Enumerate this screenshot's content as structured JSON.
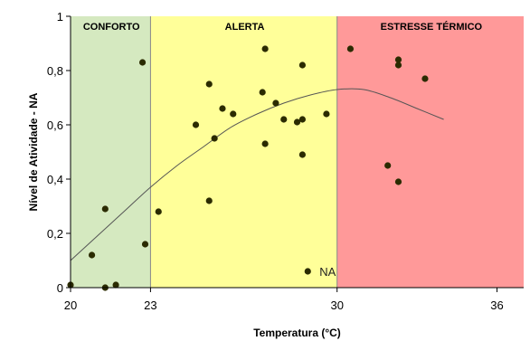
{
  "chart_data": {
    "type": "scatter",
    "xlabel": "Temperatura (°C)",
    "ylabel": "Nível de Atividade - NA",
    "xlim": [
      20,
      37
    ],
    "ylim": [
      0,
      1
    ],
    "x_ticks": [
      "20",
      "23",
      "30",
      "36"
    ],
    "y_ticks": [
      "0",
      "0,2",
      "0,4",
      "0,6",
      "0,8",
      "1"
    ],
    "grid": false,
    "zones": [
      {
        "label": "CONFORTO",
        "from": 20,
        "to": 23,
        "color": "#d5e9c0"
      },
      {
        "label": "ALERTA",
        "from": 23,
        "to": 30,
        "color": "#ffff99"
      },
      {
        "label": "ESTRESSE TÉRMICO",
        "from": 30,
        "to": 37,
        "color": "#ff9999"
      }
    ],
    "series": [
      {
        "name": "NA",
        "color": "#2b2b00",
        "points": [
          [
            20.0,
            0.01
          ],
          [
            20.8,
            0.12
          ],
          [
            21.3,
            0.29
          ],
          [
            21.3,
            0.0
          ],
          [
            21.7,
            0.01
          ],
          [
            22.7,
            0.83
          ],
          [
            22.8,
            0.16
          ],
          [
            23.3,
            0.28
          ],
          [
            24.7,
            0.6
          ],
          [
            25.2,
            0.75
          ],
          [
            25.2,
            0.32
          ],
          [
            25.4,
            0.55
          ],
          [
            25.7,
            0.66
          ],
          [
            26.1,
            0.64
          ],
          [
            27.2,
            0.72
          ],
          [
            27.3,
            0.88
          ],
          [
            27.3,
            0.53
          ],
          [
            27.7,
            0.68
          ],
          [
            28.0,
            0.62
          ],
          [
            28.5,
            0.61
          ],
          [
            28.7,
            0.82
          ],
          [
            28.7,
            0.62
          ],
          [
            28.7,
            0.49
          ],
          [
            28.9,
            0.06
          ],
          [
            29.6,
            0.64
          ],
          [
            30.5,
            0.88
          ],
          [
            31.9,
            0.45
          ],
          [
            32.3,
            0.84
          ],
          [
            32.3,
            0.82
          ],
          [
            32.3,
            0.39
          ],
          [
            33.3,
            0.77
          ]
        ]
      }
    ],
    "trendline": {
      "type": "polynomial",
      "color": "#555555",
      "points": [
        [
          20.0,
          0.1
        ],
        [
          21.0,
          0.19
        ],
        [
          22.0,
          0.28
        ],
        [
          23.0,
          0.37
        ],
        [
          24.0,
          0.45
        ],
        [
          25.0,
          0.52
        ],
        [
          26.0,
          0.59
        ],
        [
          27.0,
          0.64
        ],
        [
          28.0,
          0.68
        ],
        [
          29.0,
          0.71
        ],
        [
          30.0,
          0.73
        ],
        [
          31.0,
          0.73
        ],
        [
          32.0,
          0.7
        ],
        [
          33.0,
          0.66
        ],
        [
          34.0,
          0.62
        ]
      ]
    }
  }
}
